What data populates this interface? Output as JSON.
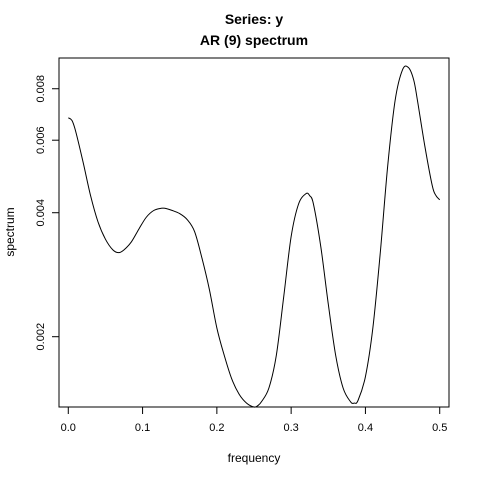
{
  "chart_data": {
    "type": "line",
    "title": "Series: y",
    "subtitle": "AR (9) spectrum",
    "xlabel": "frequency",
    "ylabel": "spectrum",
    "y_scale": "log",
    "xlim": [
      -0.0125,
      0.5125
    ],
    "ylim": [
      0.00135,
      0.0095
    ],
    "x_ticks": [
      {
        "value": 0.0,
        "label": "0.0"
      },
      {
        "value": 0.1,
        "label": "0.1"
      },
      {
        "value": 0.2,
        "label": "0.2"
      },
      {
        "value": 0.3,
        "label": "0.3"
      },
      {
        "value": 0.4,
        "label": "0.4"
      },
      {
        "value": 0.5,
        "label": "0.5"
      }
    ],
    "y_ticks": [
      {
        "value": 0.002,
        "label": "0.002"
      },
      {
        "value": 0.004,
        "label": "0.004"
      },
      {
        "value": 0.006,
        "label": "0.006"
      },
      {
        "value": 0.008,
        "label": "0.008"
      }
    ],
    "grid": false,
    "series": [
      {
        "x": [
          0.0,
          0.005,
          0.01,
          0.02,
          0.03,
          0.04,
          0.05,
          0.06,
          0.068,
          0.075,
          0.085,
          0.095,
          0.105,
          0.115,
          0.125,
          0.13,
          0.14,
          0.15,
          0.16,
          0.17,
          0.18,
          0.19,
          0.2,
          0.21,
          0.22,
          0.23,
          0.24,
          0.25,
          0.255,
          0.26,
          0.27,
          0.28,
          0.29,
          0.3,
          0.31,
          0.32,
          0.325,
          0.33,
          0.34,
          0.35,
          0.36,
          0.37,
          0.38,
          0.385,
          0.39,
          0.4,
          0.41,
          0.42,
          0.43,
          0.44,
          0.45,
          0.458,
          0.465,
          0.47,
          0.48,
          0.49,
          0.495,
          0.5
        ],
        "y": [
          0.0068,
          0.0067,
          0.0063,
          0.0053,
          0.0044,
          0.0038,
          0.00345,
          0.00325,
          0.0032,
          0.00325,
          0.0034,
          0.00365,
          0.0039,
          0.00405,
          0.0041,
          0.0041,
          0.00405,
          0.00398,
          0.00385,
          0.0036,
          0.0031,
          0.0026,
          0.0021,
          0.0018,
          0.00158,
          0.00145,
          0.00138,
          0.00135,
          0.00136,
          0.00139,
          0.0015,
          0.0018,
          0.0025,
          0.0035,
          0.0042,
          0.00445,
          0.0044,
          0.0042,
          0.0033,
          0.0024,
          0.0018,
          0.0015,
          0.00139,
          0.00138,
          0.0014,
          0.0016,
          0.0021,
          0.0032,
          0.0052,
          0.0075,
          0.0089,
          0.009,
          0.0084,
          0.0075,
          0.0058,
          0.00465,
          0.0044,
          0.0043
        ]
      }
    ]
  }
}
